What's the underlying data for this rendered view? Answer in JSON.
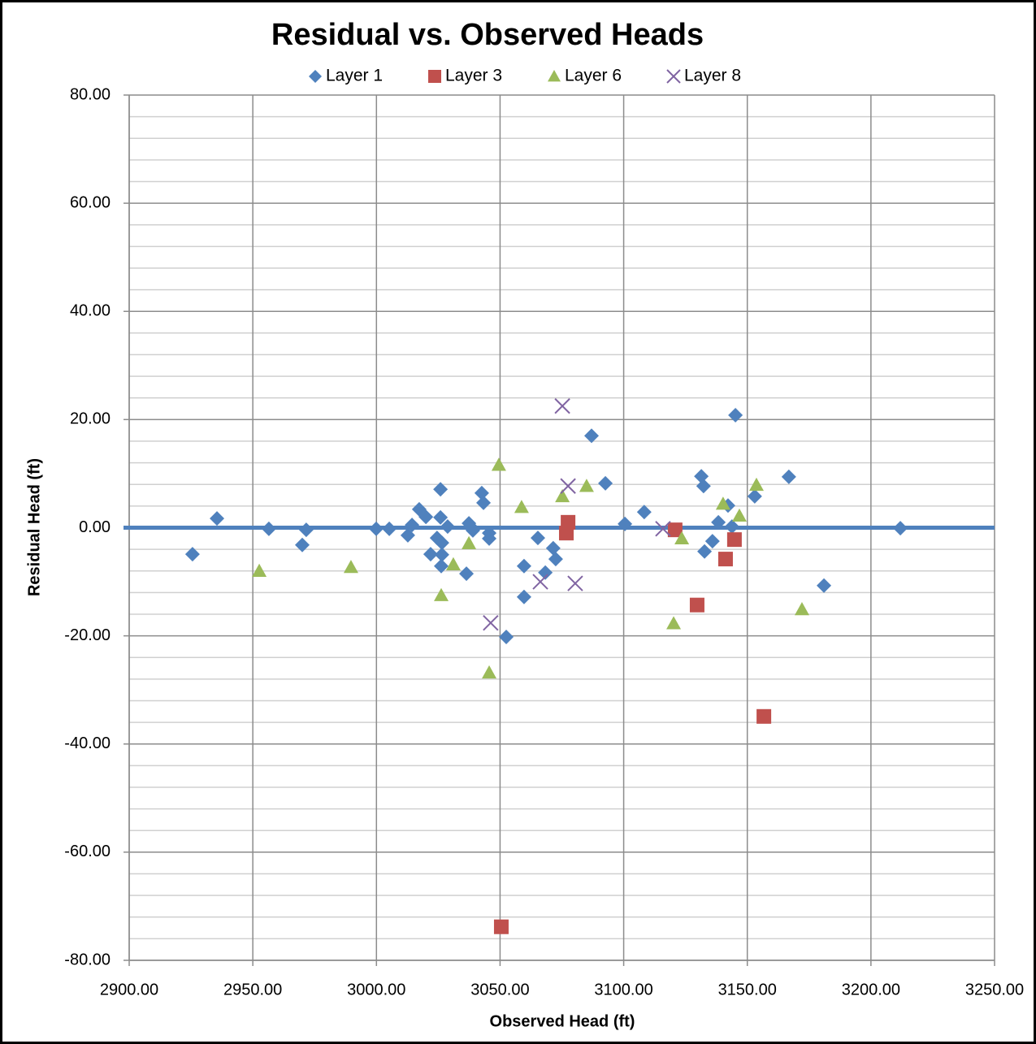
{
  "chart_data": {
    "type": "scatter",
    "title": "Residual vs. Observed Heads",
    "x_label": "Observed Head (ft)",
    "y_label": "Residual Head (ft)",
    "xlim": [
      2900,
      3250
    ],
    "ylim": [
      -80,
      80
    ],
    "xticks": [
      {
        "value": 2900,
        "label": "2900.00"
      },
      {
        "value": 2950,
        "label": "2950.00"
      },
      {
        "value": 3000,
        "label": "3000.00"
      },
      {
        "value": 3050,
        "label": "3050.00"
      },
      {
        "value": 3100,
        "label": "3100.00"
      },
      {
        "value": 3150,
        "label": "3150.00"
      },
      {
        "value": 3200,
        "label": "3200.00"
      },
      {
        "value": 3250,
        "label": "3250.00"
      }
    ],
    "yticks": [
      {
        "value": -80,
        "label": "-80.00"
      },
      {
        "value": -60,
        "label": "-60.00"
      },
      {
        "value": -40,
        "label": "-40.00"
      },
      {
        "value": -20,
        "label": "-20.00"
      },
      {
        "value": 0,
        "label": "0.00"
      },
      {
        "value": 20,
        "label": "20.00"
      },
      {
        "value": 40,
        "label": "40.00"
      },
      {
        "value": 60,
        "label": "60.00"
      },
      {
        "value": 80,
        "label": "80.00"
      }
    ],
    "yminorticks": [
      -76,
      -72,
      -68,
      -64,
      -56,
      -52,
      -48,
      -44,
      -36,
      -32,
      -28,
      -24,
      -16,
      -12,
      -8,
      -4,
      4,
      8,
      12,
      16,
      24,
      28,
      32,
      36,
      44,
      48,
      52,
      56,
      64,
      68,
      72,
      76
    ],
    "grid": true,
    "legend": "top",
    "hline": {
      "y": 0,
      "color": "#4f81bd"
    },
    "series": [
      {
        "name": "Layer 1",
        "color": "#4f81bd",
        "marker": "diamond",
        "x": [
          2925.6,
          2935.5,
          2956.5,
          2970.0,
          2971.6,
          2999.9,
          3005.2,
          3012.7,
          3014.4,
          3017.3,
          3020.0,
          3021.9,
          3024.5,
          3025.9,
          3025.9,
          3026.5,
          3026.5,
          3026.2,
          3028.8,
          3036.4,
          3037.4,
          3038.3,
          3039.0,
          3042.6,
          3043.3,
          3045.6,
          3045.6,
          3059.7,
          3059.7,
          3052.5,
          3065.3,
          3068.3,
          3071.5,
          3072.5,
          3087.0,
          3092.6,
          3100.5,
          3108.3,
          3131.4,
          3132.3,
          3132.7,
          3135.9,
          3138.3,
          3142.2,
          3143.8,
          3145.2,
          3153.0,
          3166.8,
          3181.0,
          3211.9
        ],
        "values": [
          -4.9,
          1.7,
          -0.2,
          -3.2,
          -0.4,
          -0.2,
          -0.2,
          -1.4,
          0.5,
          3.4,
          2.0,
          -4.9,
          -1.9,
          7.1,
          1.9,
          -2.8,
          -5.0,
          -7.1,
          0.2,
          -8.5,
          0.8,
          0.1,
          -0.5,
          6.4,
          4.6,
          -1.0,
          -2.0,
          -7.1,
          -12.8,
          -20.2,
          -1.9,
          -8.3,
          -3.8,
          -5.8,
          17.0,
          8.2,
          0.7,
          2.9,
          9.5,
          7.7,
          -4.4,
          -2.5,
          1.0,
          4.1,
          0.2,
          20.8,
          5.8,
          9.4,
          -10.7,
          -0.1
        ]
      },
      {
        "name": "Layer 3",
        "color": "#c0504d",
        "marker": "square",
        "x": [
          3050.5,
          3077.5,
          3076.8,
          3120.8,
          3129.7,
          3141.2,
          3144.8,
          3156.7
        ],
        "values": [
          -73.8,
          1.0,
          -1.0,
          -0.4,
          -14.3,
          -5.8,
          -2.2,
          -34.9
        ]
      },
      {
        "name": "Layer 6",
        "color": "#9bbb59",
        "marker": "triangle",
        "x": [
          2952.6,
          2989.7,
          3026.2,
          3031.1,
          3037.4,
          3045.6,
          3049.5,
          3058.7,
          3075.2,
          3085.0,
          3120.2,
          3123.5,
          3140.2,
          3146.8,
          3153.7,
          3172.1
        ],
        "values": [
          -8.0,
          -7.3,
          -12.5,
          -6.8,
          -2.9,
          -26.8,
          11.6,
          3.8,
          5.8,
          7.7,
          -17.7,
          -2.0,
          4.4,
          2.2,
          7.9,
          -15.1
        ]
      },
      {
        "name": "Layer 8",
        "color": "#8064a2",
        "marker": "x",
        "x": [
          3046.2,
          3075.2,
          3077.5,
          3066.3,
          3080.4,
          3115.9
        ],
        "values": [
          -17.6,
          22.5,
          7.7,
          -10.0,
          -10.3,
          -0.2
        ]
      }
    ]
  }
}
